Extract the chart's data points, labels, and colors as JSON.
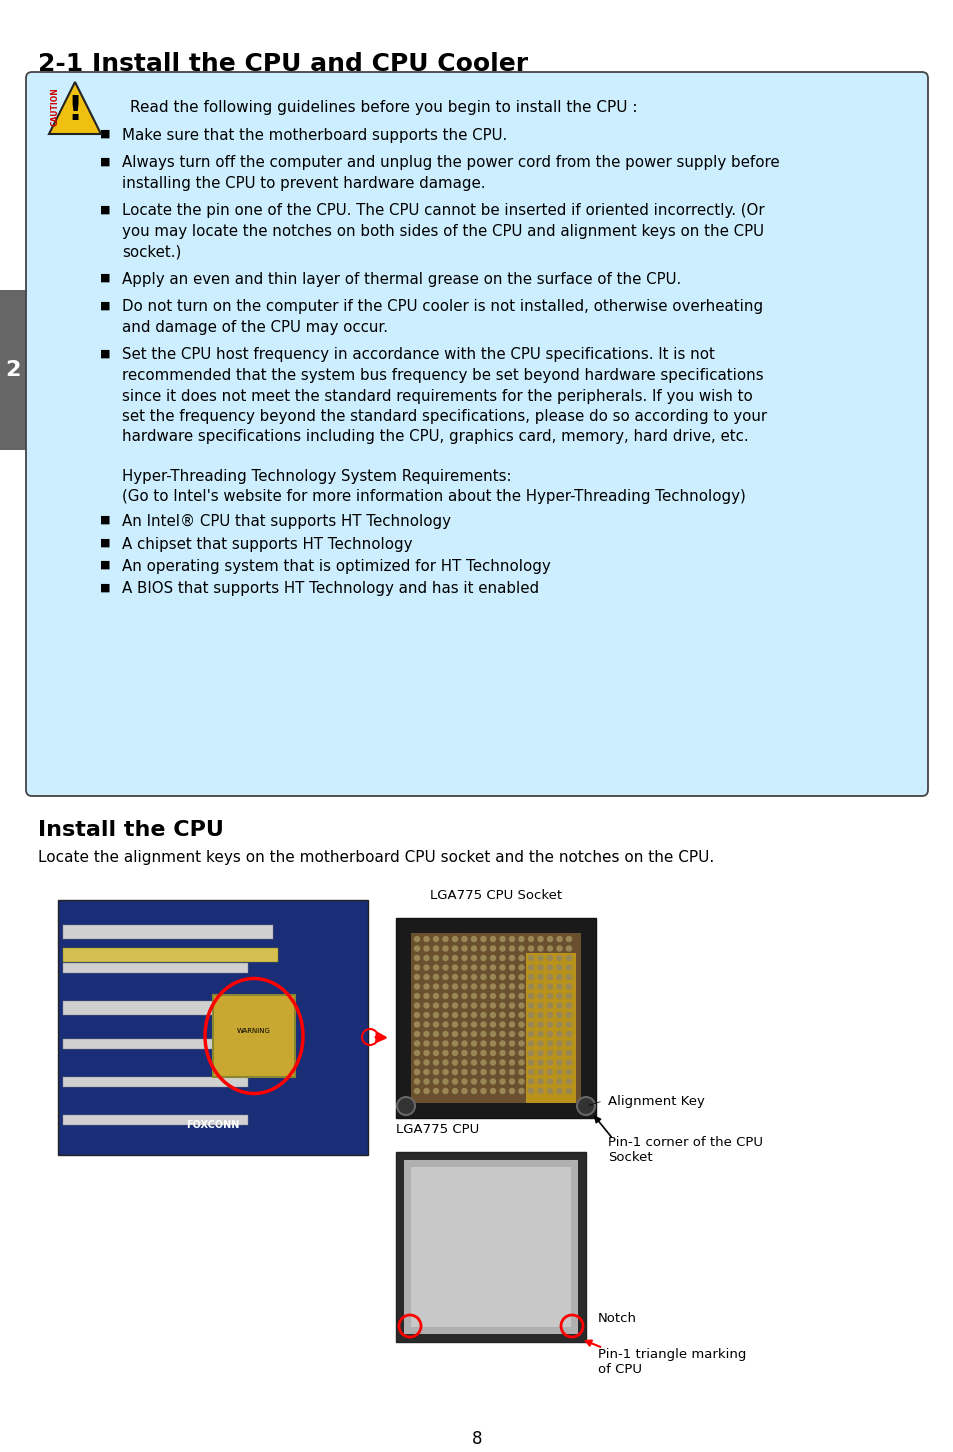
{
  "title": "2-1 Install the CPU and CPU Cooler",
  "bg_color": "#ffffff",
  "caution_box_color": "#cceeff",
  "caution_box_border": "#444444",
  "caution_header": "Read the following guidelines before you begin to install the CPU :",
  "caution_bullets": [
    "Make sure that the motherboard supports the CPU.",
    "Always turn off the computer and unplug the power cord from the power supply before\ninstalling the CPU to prevent hardware damage.",
    "Locate the pin one of the CPU. The CPU cannot be inserted if oriented incorrectly. (Or\nyou may locate the notches on both sides of the CPU and alignment keys on the CPU\nsocket.)",
    "Apply an even and thin layer of thermal grease on the surface of the CPU.",
    "Do not turn on the computer if the CPU cooler is not installed, otherwise overheating\nand damage of the CPU may occur.",
    "Set the CPU host frequency in accordance with the CPU specifications. It is not\nrecommended that the system bus frequency be set beyond hardware specifications\nsince it does not meet the standard requirements for the peripherals. If you wish to\nset the frequency beyond the standard specifications, please do so according to your\nhardware specifications including the CPU, graphics card, memory, hard drive, etc."
  ],
  "hyper_threading_lines": [
    "Hyper-Threading Technology System Requirements:",
    "(Go to Intel's website for more information about the Hyper-Threading Technology)"
  ],
  "ht_bullets": [
    "An Intel® CPU that supports HT Technology",
    "A chipset that supports HT Technology",
    "An operating system that is optimized for HT Technology",
    "A BIOS that supports HT Technology and has it enabled"
  ],
  "install_cpu_title": "Install the CPU",
  "install_cpu_subtitle": "Locate the alignment keys on the motherboard CPU socket and the notches on the CPU.",
  "lga775_socket_label": "LGA775 CPU Socket",
  "lga775_cpu_label": "LGA775 CPU",
  "alignment_key_label": "Alignment Key",
  "pin1_corner_label": "Pin-1 corner of the CPU\nSocket",
  "notch_label": "Notch",
  "pin1_triangle_label": "Pin-1 triangle marking\nof CPU",
  "page_number": "8",
  "caution_text": "CAUTION"
}
